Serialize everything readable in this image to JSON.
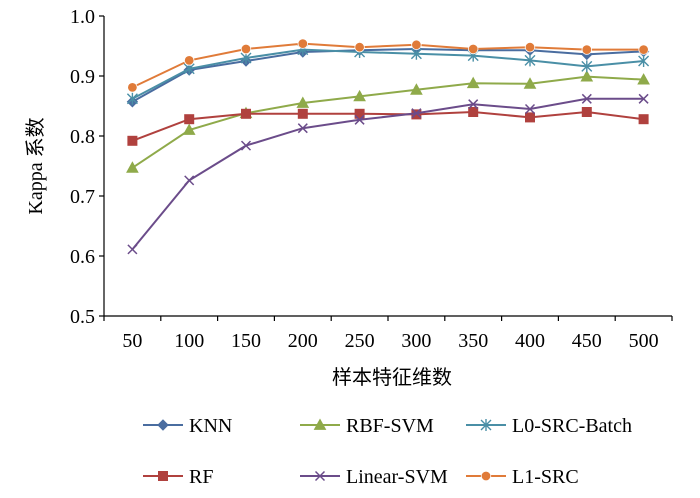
{
  "chart_data": {
    "type": "line",
    "title": "",
    "xlabel": "样本特征维数",
    "ylabel": "Kappa 系数",
    "ylim": [
      0.5,
      1.0
    ],
    "yticks": [
      "0.5",
      "0.6",
      "0.7",
      "0.8",
      "0.9",
      "1.0"
    ],
    "categories": [
      "50",
      "100",
      "150",
      "200",
      "250",
      "300",
      "350",
      "400",
      "450",
      "500"
    ],
    "grid": false,
    "legend_position": "bottom",
    "series": [
      {
        "name": "KNN",
        "color": "#4a6da0",
        "marker": "diamond",
        "values": [
          0.857,
          0.91,
          0.925,
          0.94,
          0.943,
          0.945,
          0.943,
          0.943,
          0.936,
          0.941
        ]
      },
      {
        "name": "RBF-SVM",
        "color": "#8faa4a",
        "marker": "triangle",
        "values": [
          0.747,
          0.81,
          0.838,
          0.855,
          0.866,
          0.877,
          0.888,
          0.887,
          0.899,
          0.894
        ]
      },
      {
        "name": "L0-SRC-Batch",
        "color": "#4a8fa6",
        "marker": "star",
        "values": [
          0.862,
          0.912,
          0.93,
          0.944,
          0.94,
          0.937,
          0.934,
          0.926,
          0.916,
          0.925
        ]
      },
      {
        "name": "RF",
        "color": "#b0413e",
        "marker": "square",
        "values": [
          0.792,
          0.828,
          0.837,
          0.837,
          0.837,
          0.836,
          0.84,
          0.831,
          0.84,
          0.828
        ]
      },
      {
        "name": "Linear-SVM",
        "color": "#6b4c8a",
        "marker": "x",
        "values": [
          0.611,
          0.726,
          0.784,
          0.813,
          0.827,
          0.838,
          0.853,
          0.845,
          0.862,
          0.862
        ]
      },
      {
        "name": "L1-SRC",
        "color": "#e07b39",
        "marker": "circle",
        "values": [
          0.881,
          0.926,
          0.945,
          0.954,
          0.948,
          0.952,
          0.945,
          0.948,
          0.944,
          0.944
        ]
      }
    ]
  }
}
